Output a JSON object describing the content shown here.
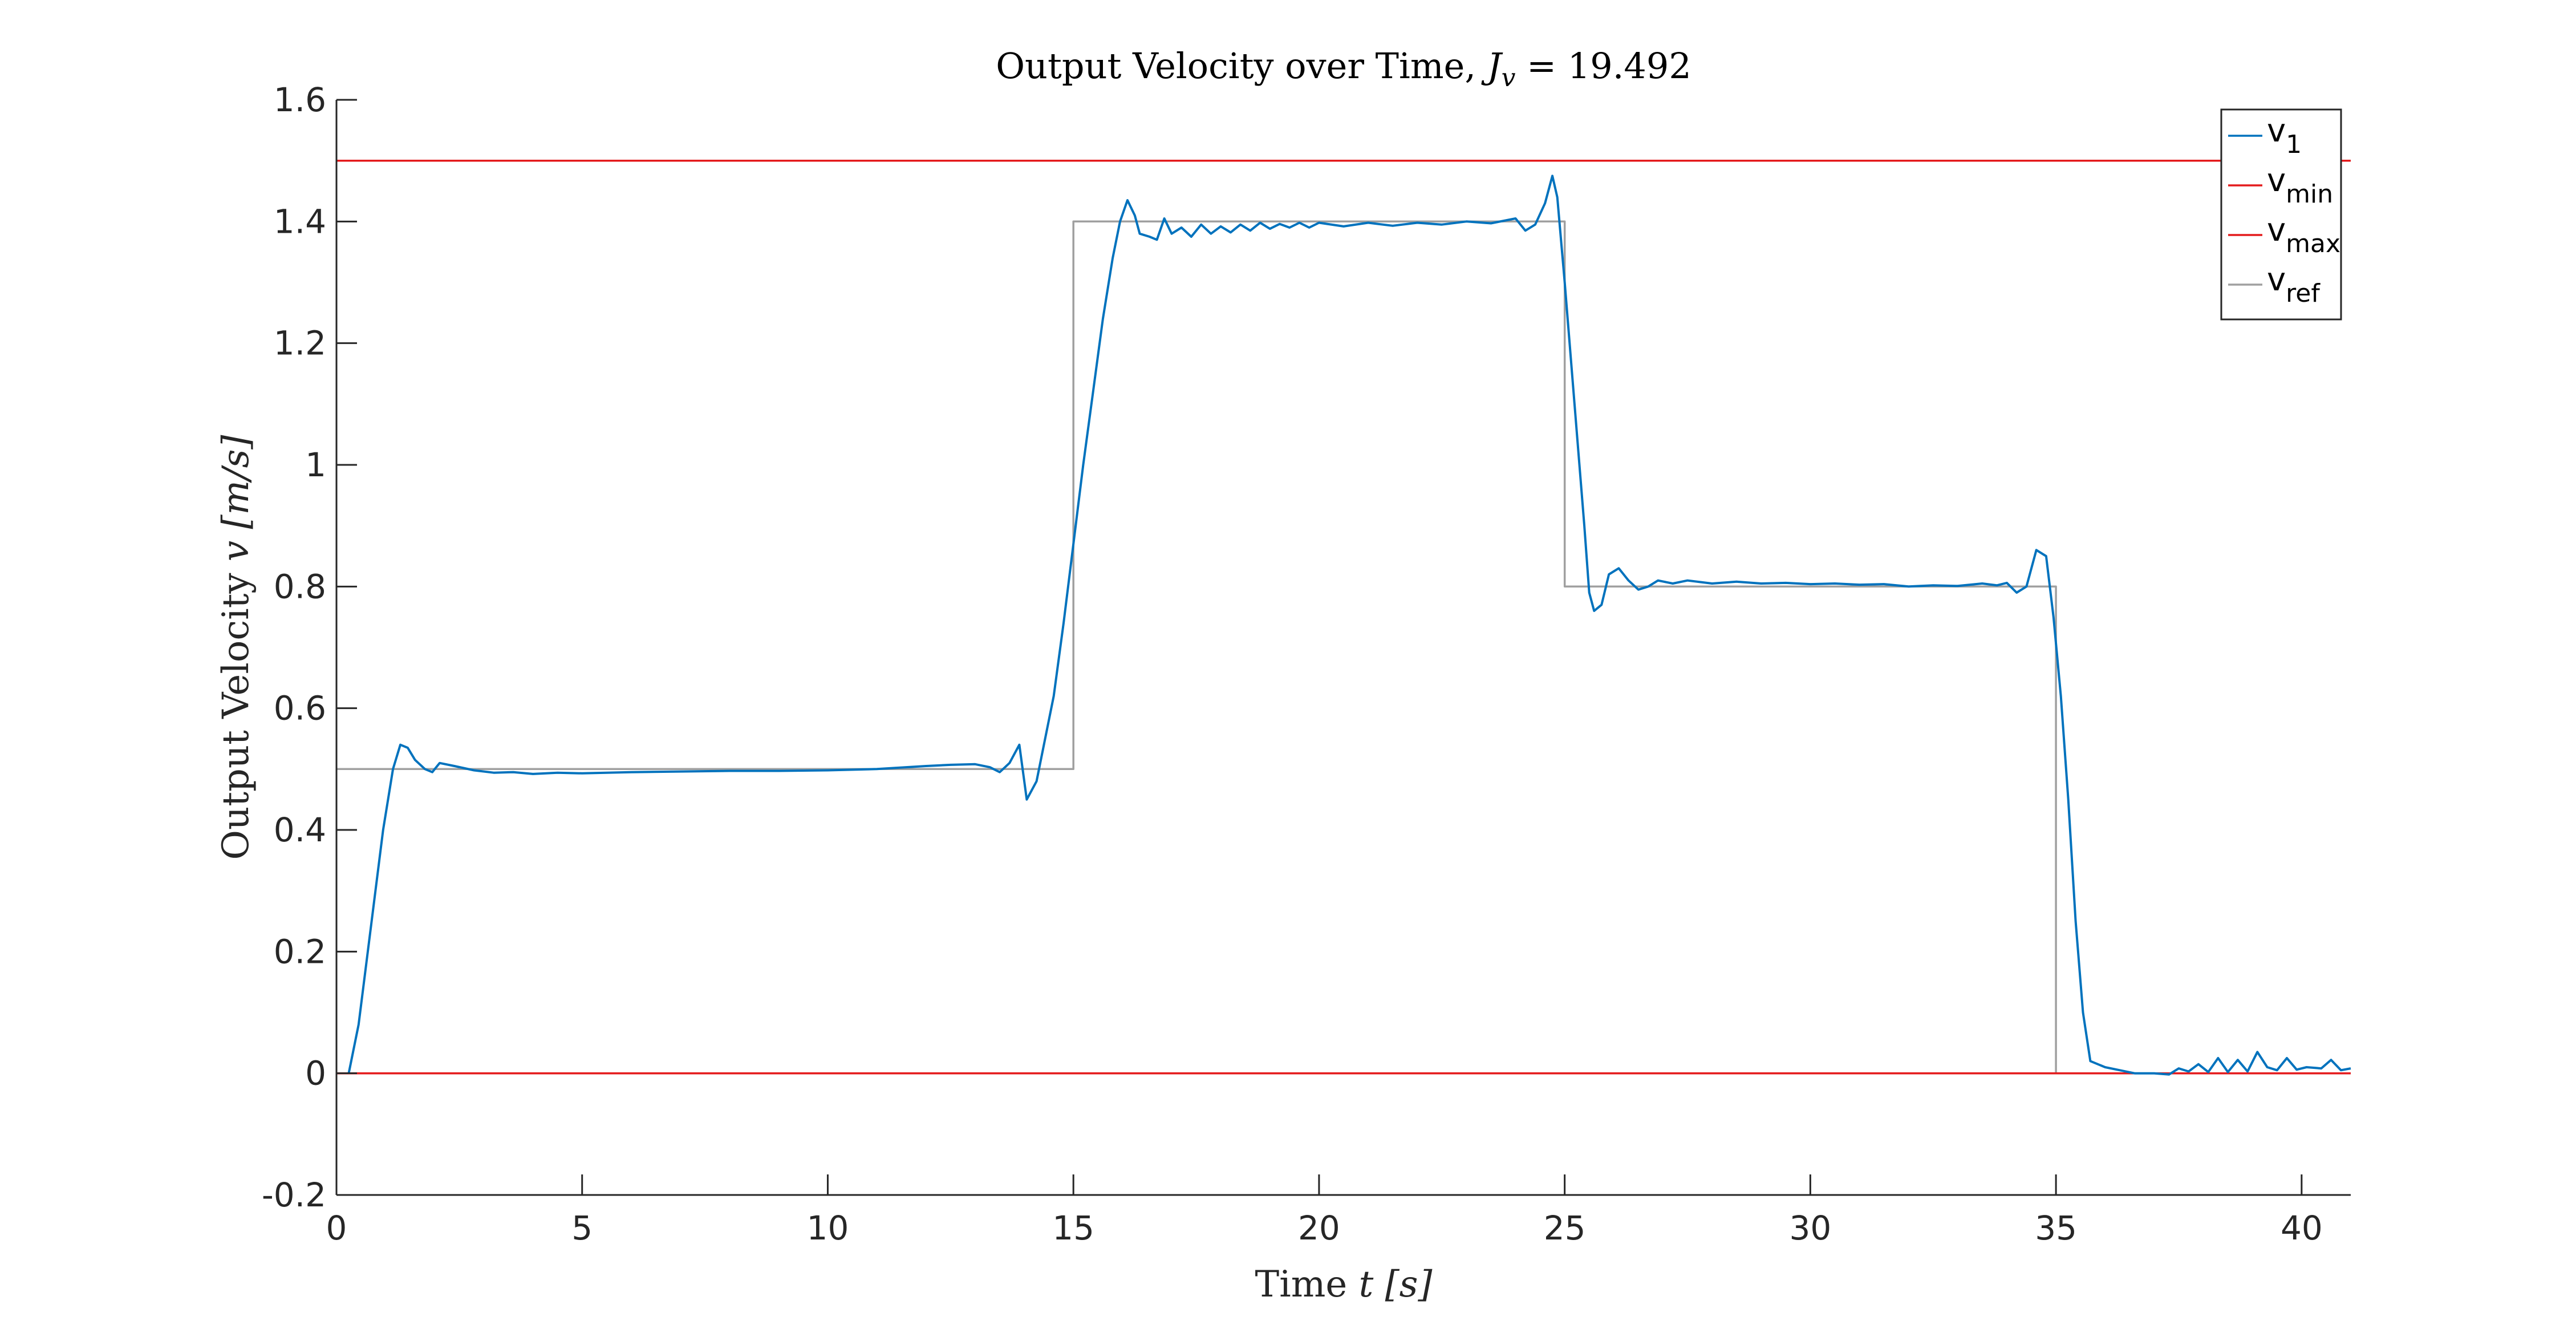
{
  "chart_data": {
    "type": "line",
    "title": "Output Velocity over Time, J_v = 19.492",
    "title_parts": {
      "prefix": "Output Velocity over Time, ",
      "symbol": "J",
      "subscript": "v",
      "suffix": " = 19.492"
    },
    "xlabel": "Time t [s]",
    "xlabel_parts": {
      "prefix": "Time ",
      "var": "t",
      "unit": "[s]"
    },
    "ylabel": "Output Velocity v [m/s]",
    "ylabel_parts": {
      "prefix": "Output Velocity ",
      "var": "v",
      "unit": "[m/s]"
    },
    "xlim": [
      0,
      41
    ],
    "ylim": [
      -0.2,
      1.6
    ],
    "xticks": [
      0,
      5,
      10,
      15,
      20,
      25,
      30,
      35,
      40
    ],
    "xtick_labels": [
      "0",
      "5",
      "10",
      "15",
      "20",
      "25",
      "30",
      "35",
      "40"
    ],
    "yticks": [
      -0.2,
      0,
      0.2,
      0.4,
      0.6,
      0.8,
      1,
      1.2,
      1.4,
      1.6
    ],
    "ytick_labels": [
      "-0.2",
      "0",
      "0.2",
      "0.4",
      "0.6",
      "0.8",
      "1",
      "1.2",
      "1.4",
      "1.6"
    ],
    "grid": false,
    "legend_position": "top-right",
    "series": [
      {
        "name": "v_1",
        "legend_main": "v",
        "legend_sub": "1",
        "color": "#0072BD",
        "points": [
          [
            0.25,
            0
          ],
          [
            0.45,
            0.08
          ],
          [
            0.7,
            0.24
          ],
          [
            0.95,
            0.4
          ],
          [
            1.15,
            0.5
          ],
          [
            1.3,
            0.54
          ],
          [
            1.45,
            0.535
          ],
          [
            1.6,
            0.515
          ],
          [
            1.8,
            0.5
          ],
          [
            1.95,
            0.495
          ],
          [
            2.1,
            0.51
          ],
          [
            2.4,
            0.505
          ],
          [
            2.8,
            0.498
          ],
          [
            3.2,
            0.494
          ],
          [
            3.6,
            0.495
          ],
          [
            4,
            0.492
          ],
          [
            4.5,
            0.494
          ],
          [
            5,
            0.493
          ],
          [
            6,
            0.495
          ],
          [
            7,
            0.496
          ],
          [
            8,
            0.497
          ],
          [
            9,
            0.497
          ],
          [
            10,
            0.498
          ],
          [
            11,
            0.5
          ],
          [
            12,
            0.505
          ],
          [
            12.5,
            0.507
          ],
          [
            13,
            0.508
          ],
          [
            13.3,
            0.503
          ],
          [
            13.5,
            0.495
          ],
          [
            13.7,
            0.51
          ],
          [
            13.9,
            0.54
          ],
          [
            14.05,
            0.45
          ],
          [
            14.25,
            0.48
          ],
          [
            14.45,
            0.56
          ],
          [
            14.6,
            0.62
          ],
          [
            14.8,
            0.74
          ],
          [
            15,
            0.87
          ],
          [
            15.2,
            1.0
          ],
          [
            15.4,
            1.12
          ],
          [
            15.6,
            1.24
          ],
          [
            15.8,
            1.34
          ],
          [
            15.95,
            1.4
          ],
          [
            16.1,
            1.435
          ],
          [
            16.25,
            1.41
          ],
          [
            16.35,
            1.38
          ],
          [
            16.55,
            1.375
          ],
          [
            16.7,
            1.37
          ],
          [
            16.85,
            1.405
          ],
          [
            17,
            1.38
          ],
          [
            17.2,
            1.39
          ],
          [
            17.4,
            1.375
          ],
          [
            17.6,
            1.395
          ],
          [
            17.8,
            1.38
          ],
          [
            18,
            1.392
          ],
          [
            18.2,
            1.382
          ],
          [
            18.4,
            1.395
          ],
          [
            18.6,
            1.385
          ],
          [
            18.8,
            1.398
          ],
          [
            19,
            1.388
          ],
          [
            19.2,
            1.396
          ],
          [
            19.4,
            1.39
          ],
          [
            19.6,
            1.398
          ],
          [
            19.8,
            1.39
          ],
          [
            20,
            1.398
          ],
          [
            20.5,
            1.392
          ],
          [
            21,
            1.398
          ],
          [
            21.5,
            1.393
          ],
          [
            22,
            1.398
          ],
          [
            22.5,
            1.395
          ],
          [
            23,
            1.4
          ],
          [
            23.5,
            1.397
          ],
          [
            24,
            1.405
          ],
          [
            24.2,
            1.385
          ],
          [
            24.4,
            1.395
          ],
          [
            24.6,
            1.43
          ],
          [
            24.75,
            1.475
          ],
          [
            24.85,
            1.44
          ],
          [
            25,
            1.3
          ],
          [
            25.1,
            1.2
          ],
          [
            25.25,
            1.05
          ],
          [
            25.4,
            0.9
          ],
          [
            25.5,
            0.79
          ],
          [
            25.6,
            0.76
          ],
          [
            25.75,
            0.77
          ],
          [
            25.9,
            0.82
          ],
          [
            26.1,
            0.83
          ],
          [
            26.3,
            0.81
          ],
          [
            26.5,
            0.795
          ],
          [
            26.7,
            0.8
          ],
          [
            26.9,
            0.81
          ],
          [
            27.2,
            0.805
          ],
          [
            27.5,
            0.81
          ],
          [
            28,
            0.805
          ],
          [
            28.5,
            0.808
          ],
          [
            29,
            0.805
          ],
          [
            29.5,
            0.806
          ],
          [
            30,
            0.804
          ],
          [
            30.5,
            0.805
          ],
          [
            31,
            0.803
          ],
          [
            31.5,
            0.804
          ],
          [
            32,
            0.8
          ],
          [
            32.5,
            0.802
          ],
          [
            33,
            0.801
          ],
          [
            33.5,
            0.805
          ],
          [
            33.8,
            0.802
          ],
          [
            34,
            0.806
          ],
          [
            34.2,
            0.79
          ],
          [
            34.4,
            0.8
          ],
          [
            34.6,
            0.86
          ],
          [
            34.8,
            0.85
          ],
          [
            34.95,
            0.75
          ],
          [
            35.1,
            0.62
          ],
          [
            35.25,
            0.45
          ],
          [
            35.4,
            0.25
          ],
          [
            35.55,
            0.1
          ],
          [
            35.7,
            0.02
          ],
          [
            36,
            0.01
          ],
          [
            36.3,
            0.005
          ],
          [
            36.6,
            0
          ],
          [
            37,
            0
          ],
          [
            37.3,
            -0.002
          ],
          [
            37.5,
            0.008
          ],
          [
            37.7,
            0.003
          ],
          [
            37.9,
            0.015
          ],
          [
            38.1,
            0.002
          ],
          [
            38.3,
            0.025
          ],
          [
            38.5,
            0.002
          ],
          [
            38.7,
            0.022
          ],
          [
            38.9,
            0.003
          ],
          [
            39.1,
            0.035
          ],
          [
            39.3,
            0.01
          ],
          [
            39.5,
            0.005
          ],
          [
            39.7,
            0.025
          ],
          [
            39.9,
            0.006
          ],
          [
            40.1,
            0.01
          ],
          [
            40.4,
            0.008
          ],
          [
            40.6,
            0.022
          ],
          [
            40.8,
            0.005
          ],
          [
            41,
            0.008
          ]
        ]
      },
      {
        "name": "v_min",
        "legend_main": "v",
        "legend_sub": "min",
        "color": "#E41A1C",
        "points": [
          [
            0,
            0
          ],
          [
            41,
            0
          ]
        ]
      },
      {
        "name": "v_max",
        "legend_main": "v",
        "legend_sub": "max",
        "color": "#E41A1C",
        "points": [
          [
            0,
            1.5
          ],
          [
            41,
            1.5
          ]
        ]
      },
      {
        "name": "v_ref",
        "legend_main": "v",
        "legend_sub": "ref",
        "color": "#A0A0A0",
        "points": [
          [
            0,
            0.5
          ],
          [
            15,
            0.5
          ],
          [
            15,
            1.4
          ],
          [
            25,
            1.4
          ],
          [
            25,
            0.8
          ],
          [
            35,
            0.8
          ],
          [
            35,
            0
          ],
          [
            41,
            0
          ]
        ]
      }
    ]
  }
}
